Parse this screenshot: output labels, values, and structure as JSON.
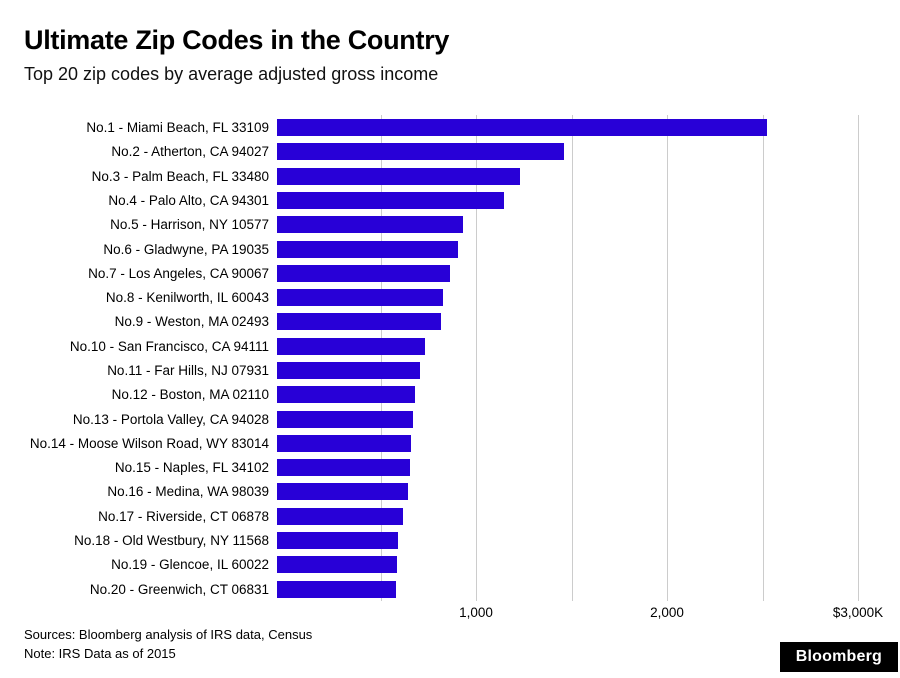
{
  "header": {
    "title": "Ultimate Zip Codes in the Country",
    "subtitle": "Top 20 zip codes by average adjusted gross income"
  },
  "footer": {
    "sources": "Sources: Bloomberg analysis of IRS data, Census",
    "note": "Note: IRS Data as of 2015",
    "logo": "Bloomberg"
  },
  "colors": {
    "bar": "#2800d7",
    "gridline": "#cccccc",
    "logo_bg": "#000000",
    "logo_text": "#ffffff"
  },
  "chart_data": {
    "type": "bar",
    "orientation": "horizontal",
    "title": "Ultimate Zip Codes in the Country",
    "subtitle": "Top 20 zip codes by average adjusted gross income",
    "xlabel": "",
    "ylabel": "",
    "xlim": [
      0,
      3000
    ],
    "grid": true,
    "gridline_values": [
      500,
      1000,
      1500,
      2000,
      2500,
      3000
    ],
    "xticks": [
      {
        "value": 1000,
        "label": "1,000"
      },
      {
        "value": 2000,
        "label": "2,000"
      },
      {
        "value": 3000,
        "label": "$3,000K"
      }
    ],
    "categories": [
      "No.1 - Miami Beach, FL 33109",
      "No.2 - Atherton, CA 94027",
      "No.3 - Palm Beach, FL 33480",
      "No.4 - Palo Alto, CA 94301",
      "No.5 - Harrison, NY 10577",
      "No.6 - Gladwyne, PA 19035",
      "No.7 - Los Angeles, CA 90067",
      "No.8 - Kenilworth, IL 60043",
      "No.9 - Weston, MA 02493",
      "No.10 - San Francisco, CA 94111",
      "No.11 - Far Hills, NJ 07931",
      "No.12 - Boston, MA 02110",
      "No.13 - Portola Valley, CA 94028",
      "No.14 - Moose Wilson Road, WY 83014",
      "No.15 - Naples, FL 34102",
      "No.16 - Medina, WA 98039",
      "No.17 - Riverside, CT 06878",
      "No.18 - Old Westbury, NY 11568",
      "No.19 - Glencoe, IL 60022",
      "No.20 - Greenwich, CT 06831"
    ],
    "values": [
      2530,
      1480,
      1255,
      1170,
      960,
      935,
      895,
      855,
      845,
      765,
      740,
      710,
      700,
      690,
      685,
      675,
      650,
      625,
      620,
      615
    ]
  }
}
